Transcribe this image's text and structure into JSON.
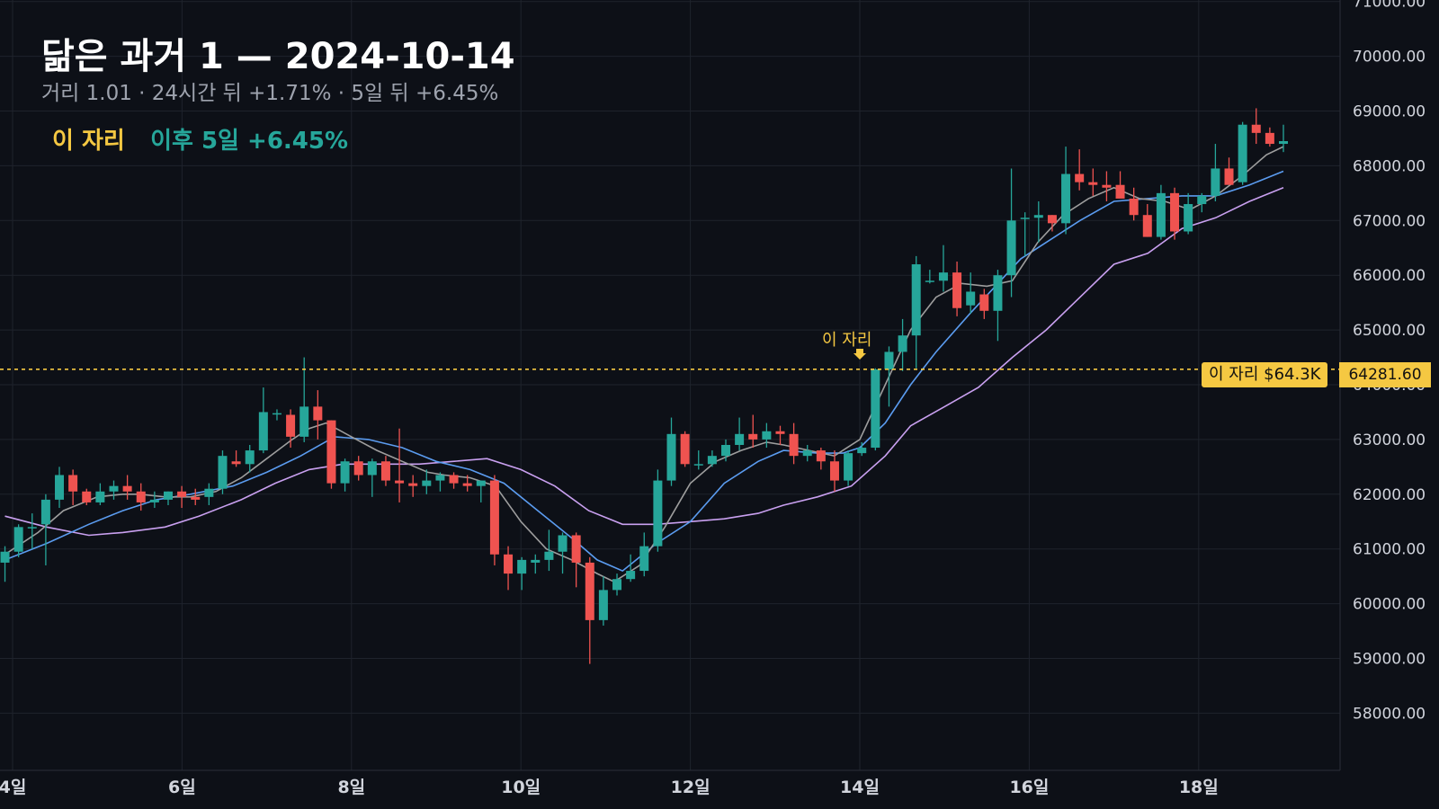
{
  "header": {
    "title": "닮은 과거 1 — 2024-10-14",
    "subtitle": "거리 1.01 · 24시간 뒤 +1.71% · 5일 뒤 +6.45%",
    "tag_label": "이 자리",
    "tag_result": "이후 5일 +6.45%"
  },
  "marker": {
    "label": "이 자리",
    "price_tag": "이 자리 $64.3K",
    "axis_tag": "64281.60"
  },
  "colors": {
    "background": "#0d1017",
    "grid": "#1f232c",
    "up": "#26a69a",
    "down": "#ef5350",
    "ma_short": "#9e9e9e",
    "ma_mid": "#5b9cf0",
    "ma_long": "#c9a0f0",
    "marker": "#f5c842"
  },
  "chart_data": {
    "type": "candlestick",
    "title": "닮은 과거 1 — 2024-10-14",
    "y_tick_labels": [
      "71000.00",
      "70000.00",
      "69000.00",
      "68000.00",
      "67000.00",
      "66000.00",
      "65000.00",
      "64000.00",
      "63000.00",
      "62000.00",
      "61000.00",
      "60000.00",
      "59000.00",
      "58000.00"
    ],
    "y_ticks": [
      71000,
      70000,
      69000,
      68000,
      67000,
      66000,
      65000,
      64000,
      63000,
      62000,
      61000,
      60000,
      59000,
      58000
    ],
    "x_tick_labels": [
      "4일",
      "6일",
      "8일",
      "10일",
      "12일",
      "14일",
      "16일",
      "18일"
    ],
    "x_ticks": [
      4,
      6,
      8,
      10,
      12,
      14,
      16,
      18
    ],
    "x_range": [
      3.91,
      19.72
    ],
    "ylim": [
      57000,
      71000
    ],
    "marker_price": 64281.6,
    "marker_x": 14.0,
    "candles_ohlc": [
      [
        60750,
        61050,
        60400,
        60950
      ],
      [
        60950,
        61450,
        60850,
        61400
      ],
      [
        61400,
        61650,
        61000,
        61400
      ],
      [
        61450,
        62000,
        60700,
        61900
      ],
      [
        61900,
        62500,
        61750,
        62350
      ],
      [
        62350,
        62450,
        61800,
        62050
      ],
      [
        62050,
        62100,
        61800,
        61850
      ],
      [
        61850,
        62200,
        61800,
        62050
      ],
      [
        62050,
        62250,
        61900,
        62150
      ],
      [
        62150,
        62350,
        61900,
        62050
      ],
      [
        62050,
        62200,
        61700,
        61850
      ],
      [
        61850,
        62050,
        61750,
        61900
      ],
      [
        61900,
        62050,
        61800,
        62050
      ],
      [
        62050,
        62150,
        61750,
        61950
      ],
      [
        61950,
        62100,
        61800,
        61900
      ],
      [
        61950,
        62200,
        61800,
        62100
      ],
      [
        62100,
        62800,
        62000,
        62700
      ],
      [
        62600,
        62800,
        62500,
        62550
      ],
      [
        62550,
        62900,
        62400,
        62800
      ],
      [
        62800,
        63950,
        62750,
        63500
      ],
      [
        63480,
        63550,
        63350,
        63480
      ],
      [
        63450,
        63550,
        62850,
        63050
      ],
      [
        63050,
        64500,
        62950,
        63600
      ],
      [
        63600,
        63900,
        63000,
        63350
      ],
      [
        63350,
        63350,
        62100,
        62200
      ],
      [
        62200,
        62650,
        62050,
        62600
      ],
      [
        62600,
        62700,
        62250,
        62350
      ],
      [
        62350,
        62650,
        61950,
        62600
      ],
      [
        62600,
        62700,
        62150,
        62250
      ],
      [
        62250,
        63200,
        61850,
        62200
      ],
      [
        62200,
        62350,
        61950,
        62150
      ],
      [
        62150,
        62450,
        62000,
        62250
      ],
      [
        62250,
        62400,
        62050,
        62350
      ],
      [
        62350,
        62400,
        62100,
        62200
      ],
      [
        62200,
        62350,
        62050,
        62150
      ],
      [
        62150,
        62250,
        61850,
        62250
      ],
      [
        62250,
        62350,
        60700,
        60900
      ],
      [
        60900,
        61050,
        60250,
        60550
      ],
      [
        60550,
        60850,
        60250,
        60800
      ],
      [
        60750,
        60900,
        60550,
        60800
      ],
      [
        60800,
        61350,
        60600,
        60950
      ],
      [
        60950,
        61300,
        60550,
        61250
      ],
      [
        61250,
        61300,
        60300,
        60750
      ],
      [
        60750,
        60850,
        58900,
        59700
      ],
      [
        59700,
        60500,
        59600,
        60250
      ],
      [
        60250,
        60550,
        60150,
        60450
      ],
      [
        60450,
        60900,
        60400,
        60600
      ],
      [
        60600,
        61300,
        60500,
        61050
      ],
      [
        61050,
        62450,
        60950,
        62250
      ],
      [
        62250,
        63400,
        62150,
        63100
      ],
      [
        63100,
        63150,
        62500,
        62550
      ],
      [
        62550,
        62800,
        62450,
        62550
      ],
      [
        62550,
        62800,
        62500,
        62700
      ],
      [
        62700,
        63000,
        62600,
        62900
      ],
      [
        62900,
        63400,
        62800,
        63100
      ],
      [
        63100,
        63450,
        62850,
        63000
      ],
      [
        63000,
        63300,
        62850,
        63150
      ],
      [
        63150,
        63250,
        62900,
        63100
      ],
      [
        63100,
        63300,
        62550,
        62700
      ],
      [
        62700,
        62900,
        62600,
        62800
      ],
      [
        62800,
        62850,
        62450,
        62600
      ],
      [
        62600,
        62800,
        62050,
        62250
      ],
      [
        62250,
        62800,
        62150,
        62750
      ],
      [
        62750,
        62950,
        62700,
        62850
      ],
      [
        62850,
        64300,
        62800,
        64280
      ],
      [
        64280,
        64700,
        63600,
        64600
      ],
      [
        64600,
        65200,
        64250,
        64900
      ],
      [
        64900,
        66350,
        64300,
        66200
      ],
      [
        65900,
        66100,
        65850,
        65900
      ],
      [
        65900,
        66550,
        65700,
        66050
      ],
      [
        66050,
        66250,
        65250,
        65400
      ],
      [
        65450,
        66050,
        65300,
        65700
      ],
      [
        65650,
        65750,
        65200,
        65350
      ],
      [
        65350,
        66100,
        64800,
        66000
      ],
      [
        66000,
        67950,
        65600,
        67000
      ],
      [
        67050,
        67150,
        66350,
        67050
      ],
      [
        67050,
        67350,
        66600,
        67100
      ],
      [
        67100,
        67100,
        66800,
        66950
      ],
      [
        66950,
        68350,
        66750,
        67850
      ],
      [
        67850,
        68300,
        67550,
        67700
      ],
      [
        67700,
        67950,
        67450,
        67650
      ],
      [
        67650,
        67900,
        67350,
        67600
      ],
      [
        67650,
        67900,
        67450,
        67400
      ],
      [
        67400,
        67600,
        67000,
        67100
      ],
      [
        67100,
        67300,
        66700,
        66700
      ],
      [
        66700,
        67650,
        66650,
        67500
      ],
      [
        67500,
        67600,
        66650,
        66800
      ],
      [
        66800,
        67500,
        66750,
        67300
      ],
      [
        67300,
        67500,
        67150,
        67450
      ],
      [
        67450,
        68400,
        67350,
        67950
      ],
      [
        67950,
        68150,
        67700,
        67650
      ],
      [
        67700,
        68800,
        67650,
        68750
      ],
      [
        68750,
        69050,
        68400,
        68600
      ],
      [
        68600,
        68700,
        68350,
        68400
      ],
      [
        68400,
        68750,
        68250,
        68450
      ]
    ],
    "ma_short": [
      [
        3.91,
        60900
      ],
      [
        4.3,
        61300
      ],
      [
        4.6,
        61700
      ],
      [
        5.0,
        61950
      ],
      [
        5.3,
        62000
      ],
      [
        5.5,
        62000
      ],
      [
        5.8,
        61950
      ],
      [
        6.1,
        61950
      ],
      [
        6.4,
        62050
      ],
      [
        6.7,
        62300
      ],
      [
        7.0,
        62650
      ],
      [
        7.3,
        63000
      ],
      [
        7.5,
        63200
      ],
      [
        7.7,
        63300
      ],
      [
        8.0,
        63050
      ],
      [
        8.3,
        62800
      ],
      [
        8.6,
        62600
      ],
      [
        8.9,
        62400
      ],
      [
        9.1,
        62350
      ],
      [
        9.4,
        62300
      ],
      [
        9.7,
        62150
      ],
      [
        10.0,
        61500
      ],
      [
        10.3,
        61000
      ],
      [
        10.6,
        60800
      ],
      [
        10.9,
        60550
      ],
      [
        11.1,
        60400
      ],
      [
        11.4,
        60700
      ],
      [
        11.7,
        61400
      ],
      [
        12.0,
        62200
      ],
      [
        12.3,
        62600
      ],
      [
        12.6,
        62800
      ],
      [
        12.9,
        62950
      ],
      [
        13.1,
        62900
      ],
      [
        13.4,
        62800
      ],
      [
        13.7,
        62700
      ],
      [
        14.0,
        63000
      ],
      [
        14.3,
        64000
      ],
      [
        14.6,
        65000
      ],
      [
        14.9,
        65600
      ],
      [
        15.2,
        65850
      ],
      [
        15.5,
        65800
      ],
      [
        15.8,
        65900
      ],
      [
        16.1,
        66600
      ],
      [
        16.4,
        67100
      ],
      [
        16.7,
        67400
      ],
      [
        17.0,
        67600
      ],
      [
        17.3,
        67400
      ],
      [
        17.6,
        67350
      ],
      [
        17.9,
        67200
      ],
      [
        18.2,
        67450
      ],
      [
        18.5,
        67800
      ],
      [
        18.8,
        68200
      ],
      [
        19.0,
        68350
      ]
    ],
    "ma_mid": [
      [
        3.91,
        60800
      ],
      [
        4.4,
        61100
      ],
      [
        4.9,
        61450
      ],
      [
        5.3,
        61700
      ],
      [
        5.7,
        61900
      ],
      [
        6.1,
        62000
      ],
      [
        6.6,
        62150
      ],
      [
        7.0,
        62400
      ],
      [
        7.4,
        62700
      ],
      [
        7.8,
        63050
      ],
      [
        8.2,
        63000
      ],
      [
        8.6,
        62850
      ],
      [
        9.0,
        62600
      ],
      [
        9.4,
        62450
      ],
      [
        9.8,
        62200
      ],
      [
        10.2,
        61700
      ],
      [
        10.6,
        61200
      ],
      [
        10.9,
        60800
      ],
      [
        11.2,
        60600
      ],
      [
        11.6,
        61100
      ],
      [
        12.0,
        61500
      ],
      [
        12.4,
        62200
      ],
      [
        12.8,
        62600
      ],
      [
        13.1,
        62800
      ],
      [
        13.5,
        62750
      ],
      [
        13.8,
        62750
      ],
      [
        14.0,
        62850
      ],
      [
        14.3,
        63300
      ],
      [
        14.6,
        64000
      ],
      [
        14.9,
        64600
      ],
      [
        15.3,
        65300
      ],
      [
        15.6,
        65800
      ],
      [
        15.9,
        66300
      ],
      [
        16.2,
        66600
      ],
      [
        16.6,
        67000
      ],
      [
        17.0,
        67350
      ],
      [
        17.4,
        67400
      ],
      [
        17.8,
        67450
      ],
      [
        18.2,
        67450
      ],
      [
        18.6,
        67650
      ],
      [
        19.0,
        67900
      ]
    ],
    "ma_long": [
      [
        3.91,
        61600
      ],
      [
        4.4,
        61400
      ],
      [
        4.9,
        61250
      ],
      [
        5.3,
        61300
      ],
      [
        5.8,
        61400
      ],
      [
        6.2,
        61600
      ],
      [
        6.7,
        61900
      ],
      [
        7.1,
        62200
      ],
      [
        7.5,
        62450
      ],
      [
        7.9,
        62550
      ],
      [
        8.3,
        62550
      ],
      [
        8.8,
        62550
      ],
      [
        9.2,
        62600
      ],
      [
        9.6,
        62650
      ],
      [
        10.0,
        62450
      ],
      [
        10.4,
        62150
      ],
      [
        10.8,
        61700
      ],
      [
        11.2,
        61450
      ],
      [
        11.6,
        61450
      ],
      [
        12.0,
        61500
      ],
      [
        12.4,
        61550
      ],
      [
        12.8,
        61650
      ],
      [
        13.1,
        61800
      ],
      [
        13.5,
        61950
      ],
      [
        13.9,
        62150
      ],
      [
        14.3,
        62700
      ],
      [
        14.6,
        63250
      ],
      [
        15.0,
        63600
      ],
      [
        15.4,
        63950
      ],
      [
        15.8,
        64500
      ],
      [
        16.2,
        65000
      ],
      [
        16.6,
        65600
      ],
      [
        17.0,
        66200
      ],
      [
        17.4,
        66400
      ],
      [
        17.8,
        66850
      ],
      [
        18.2,
        67050
      ],
      [
        18.6,
        67350
      ],
      [
        19.0,
        67600
      ]
    ]
  }
}
